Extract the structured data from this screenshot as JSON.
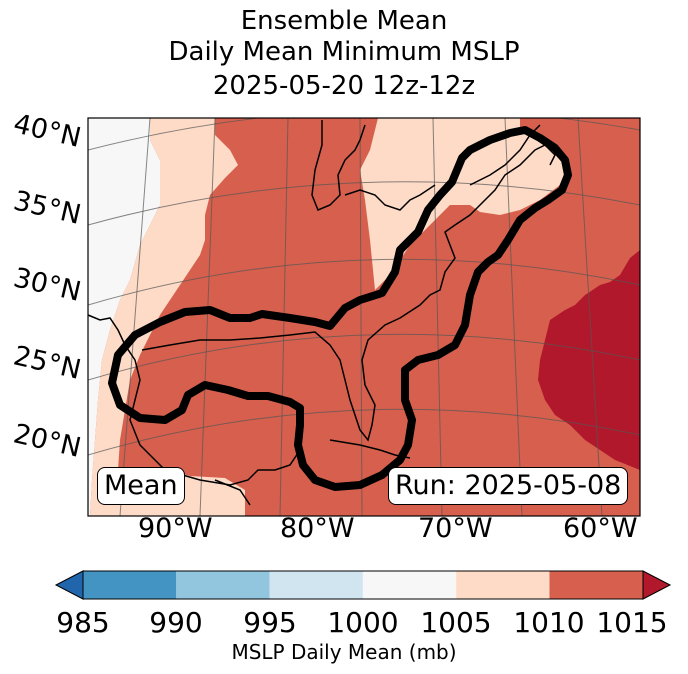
{
  "title": {
    "line1": "Ensemble Mean",
    "line2": "Daily Mean Minimum MSLP",
    "line3": "2025-05-20 12z-12z"
  },
  "map": {
    "lat_labels": [
      "40°N",
      "35°N",
      "30°N",
      "25°N",
      "20°N"
    ],
    "lon_labels": [
      "90°W",
      "80°W",
      "70°W",
      "60°W"
    ],
    "box_left": "Mean",
    "box_right": "Run: 2025-05-08",
    "region": "Gulf of Mexico and US East Coast",
    "contour_color": "#000000"
  },
  "colorbar": {
    "label": "MSLP Daily Mean (mb)",
    "ticks": [
      "985",
      "990",
      "995",
      "1000",
      "1005",
      "1010",
      "1015"
    ],
    "bins": [
      {
        "range": "<985",
        "color": "#2166ac"
      },
      {
        "range": "985-990",
        "color": "#4393c3"
      },
      {
        "range": "990-995",
        "color": "#92c5de"
      },
      {
        "range": "995-1000",
        "color": "#d1e5f0"
      },
      {
        "range": "1000-1005",
        "color": "#f7f7f7"
      },
      {
        "range": "1005-1010",
        "color": "#fddbc7"
      },
      {
        "range": "1010-1015",
        "color": "#d6604d"
      },
      {
        "range": ">1015",
        "color": "#b2182b"
      }
    ]
  }
}
